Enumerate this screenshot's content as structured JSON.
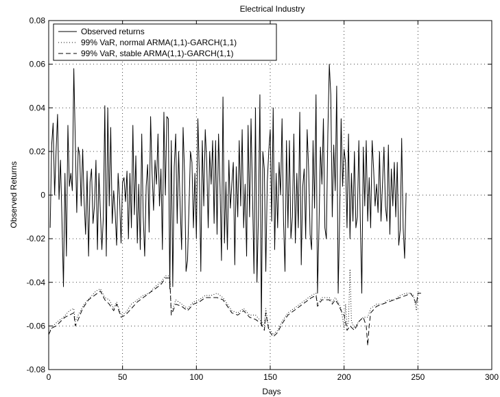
{
  "chart_data": {
    "type": "line",
    "title": "Electrical Industry",
    "xlabel": "Days",
    "ylabel": "Observed Returns",
    "xlim": [
      0,
      300
    ],
    "ylim": [
      -0.08,
      0.08
    ],
    "grid": true,
    "legend_position": "top-left",
    "x_ticks": [
      0,
      50,
      100,
      150,
      200,
      250,
      300
    ],
    "x_tick_labels": [
      "0",
      "50",
      "100",
      "150",
      "200",
      "250",
      "300"
    ],
    "y_ticks": [
      -0.08,
      -0.06,
      -0.04,
      -0.02,
      0,
      0.02,
      0.04,
      0.06,
      0.08
    ],
    "y_tick_labels": [
      "-0.08",
      "-0.06",
      "-0.04",
      "-0.02",
      "0",
      "0.02",
      "0.04",
      "0.06",
      "0.08"
    ],
    "series": [
      {
        "name": "Observed returns",
        "style": "solid",
        "x_start": 1,
        "values": [
          -0.015,
          0.023,
          0.033,
          0.0,
          0.02,
          0.037,
          -0.002,
          0.016,
          -0.012,
          -0.042,
          0.01,
          -0.028,
          0.032,
          0.004,
          0.01,
          0.002,
          0.058,
          0.025,
          -0.008,
          0.022,
          0.018,
          -0.005,
          0.021,
          -0.003,
          -0.018,
          0.011,
          -0.028,
          0.006,
          0.012,
          -0.013,
          -0.005,
          0.016,
          -0.025,
          0.01,
          -0.008,
          -0.025,
          -0.01,
          0.041,
          -0.028,
          0.04,
          -0.005,
          0.031,
          -0.013,
          0.002,
          -0.008,
          -0.023,
          0.01,
          -0.002,
          -0.022,
          0.006,
          0.008,
          -0.003,
          0.011,
          -0.02,
          0.01,
          -0.015,
          0.032,
          -0.009,
          0.018,
          -0.022,
          0.005,
          -0.025,
          0.028,
          -0.01,
          -0.028,
          0.004,
          0.014,
          -0.017,
          0.036,
          0.01,
          -0.007,
          0.016,
          0.005,
          0.028,
          -0.005,
          0.012,
          -0.025,
          0.038,
          0.0,
          0.036,
          0.035,
          -0.043,
          0.025,
          -0.042,
          0.013,
          0.028,
          -0.013,
          0.02,
          -0.005,
          -0.025,
          0.031,
          0.01,
          -0.035,
          -0.03,
          -0.005,
          0.02,
          0.015,
          -0.015,
          0.01,
          -0.02,
          0.035,
          0.01,
          -0.035,
          0.025,
          -0.005,
          0.03,
          0.015,
          -0.015,
          0.02,
          0.005,
          0.025,
          -0.013,
          0.025,
          -0.018,
          0.028,
          0.004,
          -0.03,
          0.045,
          -0.022,
          0.006,
          -0.025,
          0.016,
          -0.006,
          0.005,
          0.015,
          -0.032,
          0.013,
          -0.01,
          0.025,
          -0.005,
          0.03,
          -0.015,
          0.005,
          -0.028,
          0.032,
          -0.01,
          0.035,
          0.0,
          -0.036,
          0.04,
          -0.04,
          -0.01,
          0.046,
          -0.06,
          0.02,
          0.012,
          -0.035,
          0.006,
          0.02,
          0.03,
          -0.012,
          0.04,
          -0.025,
          0.01,
          -0.015,
          0.015,
          0.0,
          0.035,
          -0.012,
          -0.035,
          0.025,
          -0.015,
          0.025,
          -0.02,
          -0.01,
          0.028,
          -0.022,
          0.01,
          -0.015,
          0.038,
          -0.032,
          0.004,
          0.012,
          -0.02,
          0.03,
          0.012,
          -0.018,
          -0.025,
          0.025,
          -0.006,
          0.046,
          -0.045,
          -0.015,
          0.022,
          0.005,
          0.035,
          -0.015,
          -0.02,
          0.028,
          0.06,
          0.046,
          -0.01,
          0.023,
          0.002,
          0.05,
          -0.045,
          -0.01,
          0.035,
          0.004,
          0.021,
          0.015,
          -0.015,
          0.028,
          -0.02,
          0.01,
          -0.012,
          0.02,
          -0.015,
          -0.01,
          0.025,
          -0.012,
          -0.045,
          0.022,
          -0.005,
          0.025,
          -0.012,
          0.008,
          -0.015,
          0.025,
          0.012,
          -0.005,
          0.005,
          -0.008,
          0.02,
          -0.012,
          0.005,
          0.022,
          -0.005,
          -0.012,
          0.023,
          -0.018,
          0.012,
          -0.005,
          0.015,
          -0.01,
          0.015,
          -0.023,
          -0.016,
          0.026,
          -0.015,
          -0.029,
          0.001
        ]
      },
      {
        "name": "99% VaR, normal ARMA(1,1)-GARCH(1,1)",
        "style": "dotted",
        "points": [
          [
            0,
            -0.063
          ],
          [
            3,
            -0.06
          ],
          [
            6,
            -0.058
          ],
          [
            10,
            -0.056
          ],
          [
            14,
            -0.053
          ],
          [
            17,
            -0.052
          ],
          [
            18,
            -0.058
          ],
          [
            20,
            -0.055
          ],
          [
            24,
            -0.05
          ],
          [
            28,
            -0.047
          ],
          [
            32,
            -0.044
          ],
          [
            35,
            -0.043
          ],
          [
            38,
            -0.047
          ],
          [
            41,
            -0.048
          ],
          [
            44,
            -0.052
          ],
          [
            46,
            -0.049
          ],
          [
            49,
            -0.055
          ],
          [
            52,
            -0.054
          ],
          [
            56,
            -0.05
          ],
          [
            60,
            -0.048
          ],
          [
            64,
            -0.046
          ],
          [
            68,
            -0.045
          ],
          [
            72,
            -0.042
          ],
          [
            76,
            -0.04
          ],
          [
            79,
            -0.037
          ],
          [
            82,
            -0.037
          ],
          [
            83,
            -0.054
          ],
          [
            86,
            -0.048
          ],
          [
            90,
            -0.05
          ],
          [
            94,
            -0.052
          ],
          [
            98,
            -0.049
          ],
          [
            102,
            -0.048
          ],
          [
            106,
            -0.046
          ],
          [
            110,
            -0.046
          ],
          [
            114,
            -0.045
          ],
          [
            118,
            -0.047
          ],
          [
            120,
            -0.049
          ],
          [
            124,
            -0.053
          ],
          [
            128,
            -0.054
          ],
          [
            132,
            -0.052
          ],
          [
            136,
            -0.055
          ],
          [
            140,
            -0.055
          ],
          [
            144,
            -0.058
          ],
          [
            146,
            -0.06
          ],
          [
            147,
            -0.052
          ],
          [
            149,
            -0.061
          ],
          [
            152,
            -0.064
          ],
          [
            155,
            -0.062
          ],
          [
            158,
            -0.058
          ],
          [
            162,
            -0.054
          ],
          [
            166,
            -0.052
          ],
          [
            170,
            -0.05
          ],
          [
            174,
            -0.048
          ],
          [
            178,
            -0.046
          ],
          [
            181,
            -0.045
          ],
          [
            182,
            -0.05
          ],
          [
            185,
            -0.047
          ],
          [
            188,
            -0.047
          ],
          [
            190,
            -0.047
          ],
          [
            192,
            -0.049
          ],
          [
            194,
            -0.047
          ],
          [
            196,
            -0.049
          ],
          [
            198,
            -0.052
          ],
          [
            200,
            -0.061
          ],
          [
            201,
            -0.05
          ],
          [
            202,
            -0.06
          ],
          [
            203,
            -0.058
          ],
          [
            204,
            -0.034
          ],
          [
            205,
            -0.058
          ],
          [
            207,
            -0.061
          ],
          [
            210,
            -0.058
          ],
          [
            213,
            -0.056
          ],
          [
            216,
            -0.056
          ],
          [
            218,
            -0.052
          ],
          [
            222,
            -0.05
          ],
          [
            226,
            -0.05
          ],
          [
            230,
            -0.048
          ],
          [
            234,
            -0.048
          ],
          [
            238,
            -0.046
          ],
          [
            242,
            -0.045
          ],
          [
            245,
            -0.045
          ],
          [
            247,
            -0.046
          ],
          [
            249,
            -0.053
          ],
          [
            250,
            -0.045
          ],
          [
            252,
            -0.045
          ]
        ]
      },
      {
        "name": "99% VaR, stable ARMA(1,1)-GARCH(1,1)",
        "style": "dashed",
        "points": [
          [
            0,
            -0.064
          ],
          [
            2,
            -0.061
          ],
          [
            5,
            -0.06
          ],
          [
            8,
            -0.058
          ],
          [
            11,
            -0.056
          ],
          [
            14,
            -0.055
          ],
          [
            17,
            -0.054
          ],
          [
            18,
            -0.06
          ],
          [
            20,
            -0.057
          ],
          [
            23,
            -0.052
          ],
          [
            27,
            -0.048
          ],
          [
            31,
            -0.046
          ],
          [
            35,
            -0.044
          ],
          [
            38,
            -0.048
          ],
          [
            41,
            -0.05
          ],
          [
            44,
            -0.053
          ],
          [
            46,
            -0.05
          ],
          [
            49,
            -0.056
          ],
          [
            52,
            -0.055
          ],
          [
            56,
            -0.052
          ],
          [
            60,
            -0.049
          ],
          [
            64,
            -0.047
          ],
          [
            68,
            -0.045
          ],
          [
            72,
            -0.043
          ],
          [
            76,
            -0.041
          ],
          [
            79,
            -0.038
          ],
          [
            82,
            -0.038
          ],
          [
            83,
            -0.055
          ],
          [
            86,
            -0.05
          ],
          [
            90,
            -0.051
          ],
          [
            94,
            -0.053
          ],
          [
            98,
            -0.05
          ],
          [
            102,
            -0.049
          ],
          [
            106,
            -0.047
          ],
          [
            110,
            -0.047
          ],
          [
            114,
            -0.047
          ],
          [
            118,
            -0.048
          ],
          [
            120,
            -0.05
          ],
          [
            124,
            -0.054
          ],
          [
            128,
            -0.055
          ],
          [
            132,
            -0.053
          ],
          [
            136,
            -0.056
          ],
          [
            140,
            -0.057
          ],
          [
            144,
            -0.059
          ],
          [
            146,
            -0.062
          ],
          [
            147,
            -0.054
          ],
          [
            149,
            -0.062
          ],
          [
            152,
            -0.065
          ],
          [
            155,
            -0.063
          ],
          [
            158,
            -0.059
          ],
          [
            162,
            -0.055
          ],
          [
            166,
            -0.053
          ],
          [
            170,
            -0.051
          ],
          [
            174,
            -0.049
          ],
          [
            178,
            -0.047
          ],
          [
            181,
            -0.046
          ],
          [
            182,
            -0.051
          ],
          [
            185,
            -0.048
          ],
          [
            188,
            -0.048
          ],
          [
            190,
            -0.048
          ],
          [
            192,
            -0.05
          ],
          [
            194,
            -0.048
          ],
          [
            196,
            -0.05
          ],
          [
            198,
            -0.053
          ],
          [
            200,
            -0.055
          ],
          [
            202,
            -0.062
          ],
          [
            204,
            -0.06
          ],
          [
            207,
            -0.062
          ],
          [
            210,
            -0.058
          ],
          [
            213,
            -0.056
          ],
          [
            215,
            -0.06
          ],
          [
            216,
            -0.069
          ],
          [
            217,
            -0.06
          ],
          [
            218,
            -0.054
          ],
          [
            222,
            -0.051
          ],
          [
            226,
            -0.05
          ],
          [
            230,
            -0.049
          ],
          [
            234,
            -0.048
          ],
          [
            238,
            -0.047
          ],
          [
            242,
            -0.046
          ],
          [
            245,
            -0.045
          ],
          [
            247,
            -0.047
          ],
          [
            249,
            -0.05
          ],
          [
            250,
            -0.045
          ],
          [
            252,
            -0.045
          ]
        ]
      }
    ]
  }
}
